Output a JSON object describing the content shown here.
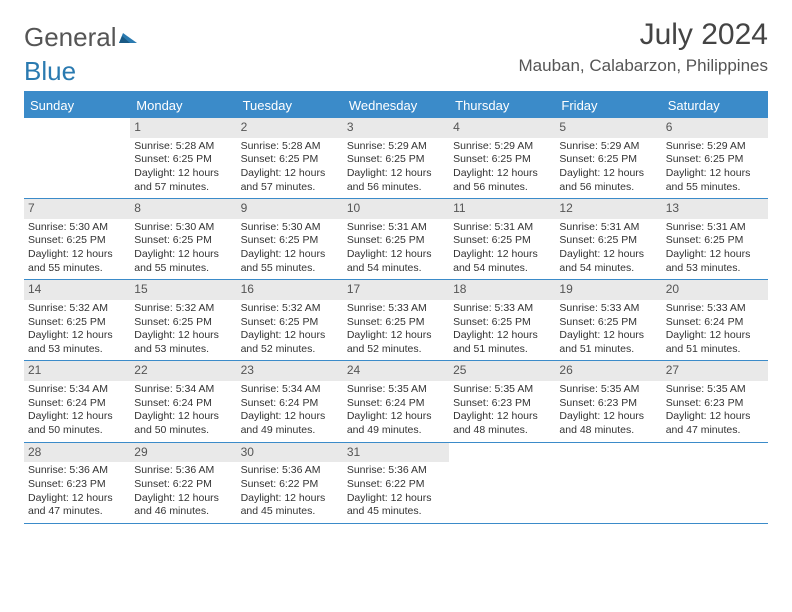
{
  "brand": {
    "part1": "General",
    "part2": "Blue"
  },
  "header": {
    "month": "July 2024",
    "location": "Mauban, Calabarzon, Philippines"
  },
  "colors": {
    "accent": "#3b8bc9",
    "daynum_bg": "#e9e9e9",
    "text": "#333333"
  },
  "dayNames": [
    "Sunday",
    "Monday",
    "Tuesday",
    "Wednesday",
    "Thursday",
    "Friday",
    "Saturday"
  ],
  "weeks": [
    [
      {
        "n": "",
        "sr": "",
        "ss": "",
        "d1": "",
        "d2": ""
      },
      {
        "n": "1",
        "sr": "Sunrise: 5:28 AM",
        "ss": "Sunset: 6:25 PM",
        "d1": "Daylight: 12 hours",
        "d2": "and 57 minutes."
      },
      {
        "n": "2",
        "sr": "Sunrise: 5:28 AM",
        "ss": "Sunset: 6:25 PM",
        "d1": "Daylight: 12 hours",
        "d2": "and 57 minutes."
      },
      {
        "n": "3",
        "sr": "Sunrise: 5:29 AM",
        "ss": "Sunset: 6:25 PM",
        "d1": "Daylight: 12 hours",
        "d2": "and 56 minutes."
      },
      {
        "n": "4",
        "sr": "Sunrise: 5:29 AM",
        "ss": "Sunset: 6:25 PM",
        "d1": "Daylight: 12 hours",
        "d2": "and 56 minutes."
      },
      {
        "n": "5",
        "sr": "Sunrise: 5:29 AM",
        "ss": "Sunset: 6:25 PM",
        "d1": "Daylight: 12 hours",
        "d2": "and 56 minutes."
      },
      {
        "n": "6",
        "sr": "Sunrise: 5:29 AM",
        "ss": "Sunset: 6:25 PM",
        "d1": "Daylight: 12 hours",
        "d2": "and 55 minutes."
      }
    ],
    [
      {
        "n": "7",
        "sr": "Sunrise: 5:30 AM",
        "ss": "Sunset: 6:25 PM",
        "d1": "Daylight: 12 hours",
        "d2": "and 55 minutes."
      },
      {
        "n": "8",
        "sr": "Sunrise: 5:30 AM",
        "ss": "Sunset: 6:25 PM",
        "d1": "Daylight: 12 hours",
        "d2": "and 55 minutes."
      },
      {
        "n": "9",
        "sr": "Sunrise: 5:30 AM",
        "ss": "Sunset: 6:25 PM",
        "d1": "Daylight: 12 hours",
        "d2": "and 55 minutes."
      },
      {
        "n": "10",
        "sr": "Sunrise: 5:31 AM",
        "ss": "Sunset: 6:25 PM",
        "d1": "Daylight: 12 hours",
        "d2": "and 54 minutes."
      },
      {
        "n": "11",
        "sr": "Sunrise: 5:31 AM",
        "ss": "Sunset: 6:25 PM",
        "d1": "Daylight: 12 hours",
        "d2": "and 54 minutes."
      },
      {
        "n": "12",
        "sr": "Sunrise: 5:31 AM",
        "ss": "Sunset: 6:25 PM",
        "d1": "Daylight: 12 hours",
        "d2": "and 54 minutes."
      },
      {
        "n": "13",
        "sr": "Sunrise: 5:31 AM",
        "ss": "Sunset: 6:25 PM",
        "d1": "Daylight: 12 hours",
        "d2": "and 53 minutes."
      }
    ],
    [
      {
        "n": "14",
        "sr": "Sunrise: 5:32 AM",
        "ss": "Sunset: 6:25 PM",
        "d1": "Daylight: 12 hours",
        "d2": "and 53 minutes."
      },
      {
        "n": "15",
        "sr": "Sunrise: 5:32 AM",
        "ss": "Sunset: 6:25 PM",
        "d1": "Daylight: 12 hours",
        "d2": "and 53 minutes."
      },
      {
        "n": "16",
        "sr": "Sunrise: 5:32 AM",
        "ss": "Sunset: 6:25 PM",
        "d1": "Daylight: 12 hours",
        "d2": "and 52 minutes."
      },
      {
        "n": "17",
        "sr": "Sunrise: 5:33 AM",
        "ss": "Sunset: 6:25 PM",
        "d1": "Daylight: 12 hours",
        "d2": "and 52 minutes."
      },
      {
        "n": "18",
        "sr": "Sunrise: 5:33 AM",
        "ss": "Sunset: 6:25 PM",
        "d1": "Daylight: 12 hours",
        "d2": "and 51 minutes."
      },
      {
        "n": "19",
        "sr": "Sunrise: 5:33 AM",
        "ss": "Sunset: 6:25 PM",
        "d1": "Daylight: 12 hours",
        "d2": "and 51 minutes."
      },
      {
        "n": "20",
        "sr": "Sunrise: 5:33 AM",
        "ss": "Sunset: 6:24 PM",
        "d1": "Daylight: 12 hours",
        "d2": "and 51 minutes."
      }
    ],
    [
      {
        "n": "21",
        "sr": "Sunrise: 5:34 AM",
        "ss": "Sunset: 6:24 PM",
        "d1": "Daylight: 12 hours",
        "d2": "and 50 minutes."
      },
      {
        "n": "22",
        "sr": "Sunrise: 5:34 AM",
        "ss": "Sunset: 6:24 PM",
        "d1": "Daylight: 12 hours",
        "d2": "and 50 minutes."
      },
      {
        "n": "23",
        "sr": "Sunrise: 5:34 AM",
        "ss": "Sunset: 6:24 PM",
        "d1": "Daylight: 12 hours",
        "d2": "and 49 minutes."
      },
      {
        "n": "24",
        "sr": "Sunrise: 5:35 AM",
        "ss": "Sunset: 6:24 PM",
        "d1": "Daylight: 12 hours",
        "d2": "and 49 minutes."
      },
      {
        "n": "25",
        "sr": "Sunrise: 5:35 AM",
        "ss": "Sunset: 6:23 PM",
        "d1": "Daylight: 12 hours",
        "d2": "and 48 minutes."
      },
      {
        "n": "26",
        "sr": "Sunrise: 5:35 AM",
        "ss": "Sunset: 6:23 PM",
        "d1": "Daylight: 12 hours",
        "d2": "and 48 minutes."
      },
      {
        "n": "27",
        "sr": "Sunrise: 5:35 AM",
        "ss": "Sunset: 6:23 PM",
        "d1": "Daylight: 12 hours",
        "d2": "and 47 minutes."
      }
    ],
    [
      {
        "n": "28",
        "sr": "Sunrise: 5:36 AM",
        "ss": "Sunset: 6:23 PM",
        "d1": "Daylight: 12 hours",
        "d2": "and 47 minutes."
      },
      {
        "n": "29",
        "sr": "Sunrise: 5:36 AM",
        "ss": "Sunset: 6:22 PM",
        "d1": "Daylight: 12 hours",
        "d2": "and 46 minutes."
      },
      {
        "n": "30",
        "sr": "Sunrise: 5:36 AM",
        "ss": "Sunset: 6:22 PM",
        "d1": "Daylight: 12 hours",
        "d2": "and 45 minutes."
      },
      {
        "n": "31",
        "sr": "Sunrise: 5:36 AM",
        "ss": "Sunset: 6:22 PM",
        "d1": "Daylight: 12 hours",
        "d2": "and 45 minutes."
      },
      {
        "n": "",
        "sr": "",
        "ss": "",
        "d1": "",
        "d2": ""
      },
      {
        "n": "",
        "sr": "",
        "ss": "",
        "d1": "",
        "d2": ""
      },
      {
        "n": "",
        "sr": "",
        "ss": "",
        "d1": "",
        "d2": ""
      }
    ]
  ]
}
